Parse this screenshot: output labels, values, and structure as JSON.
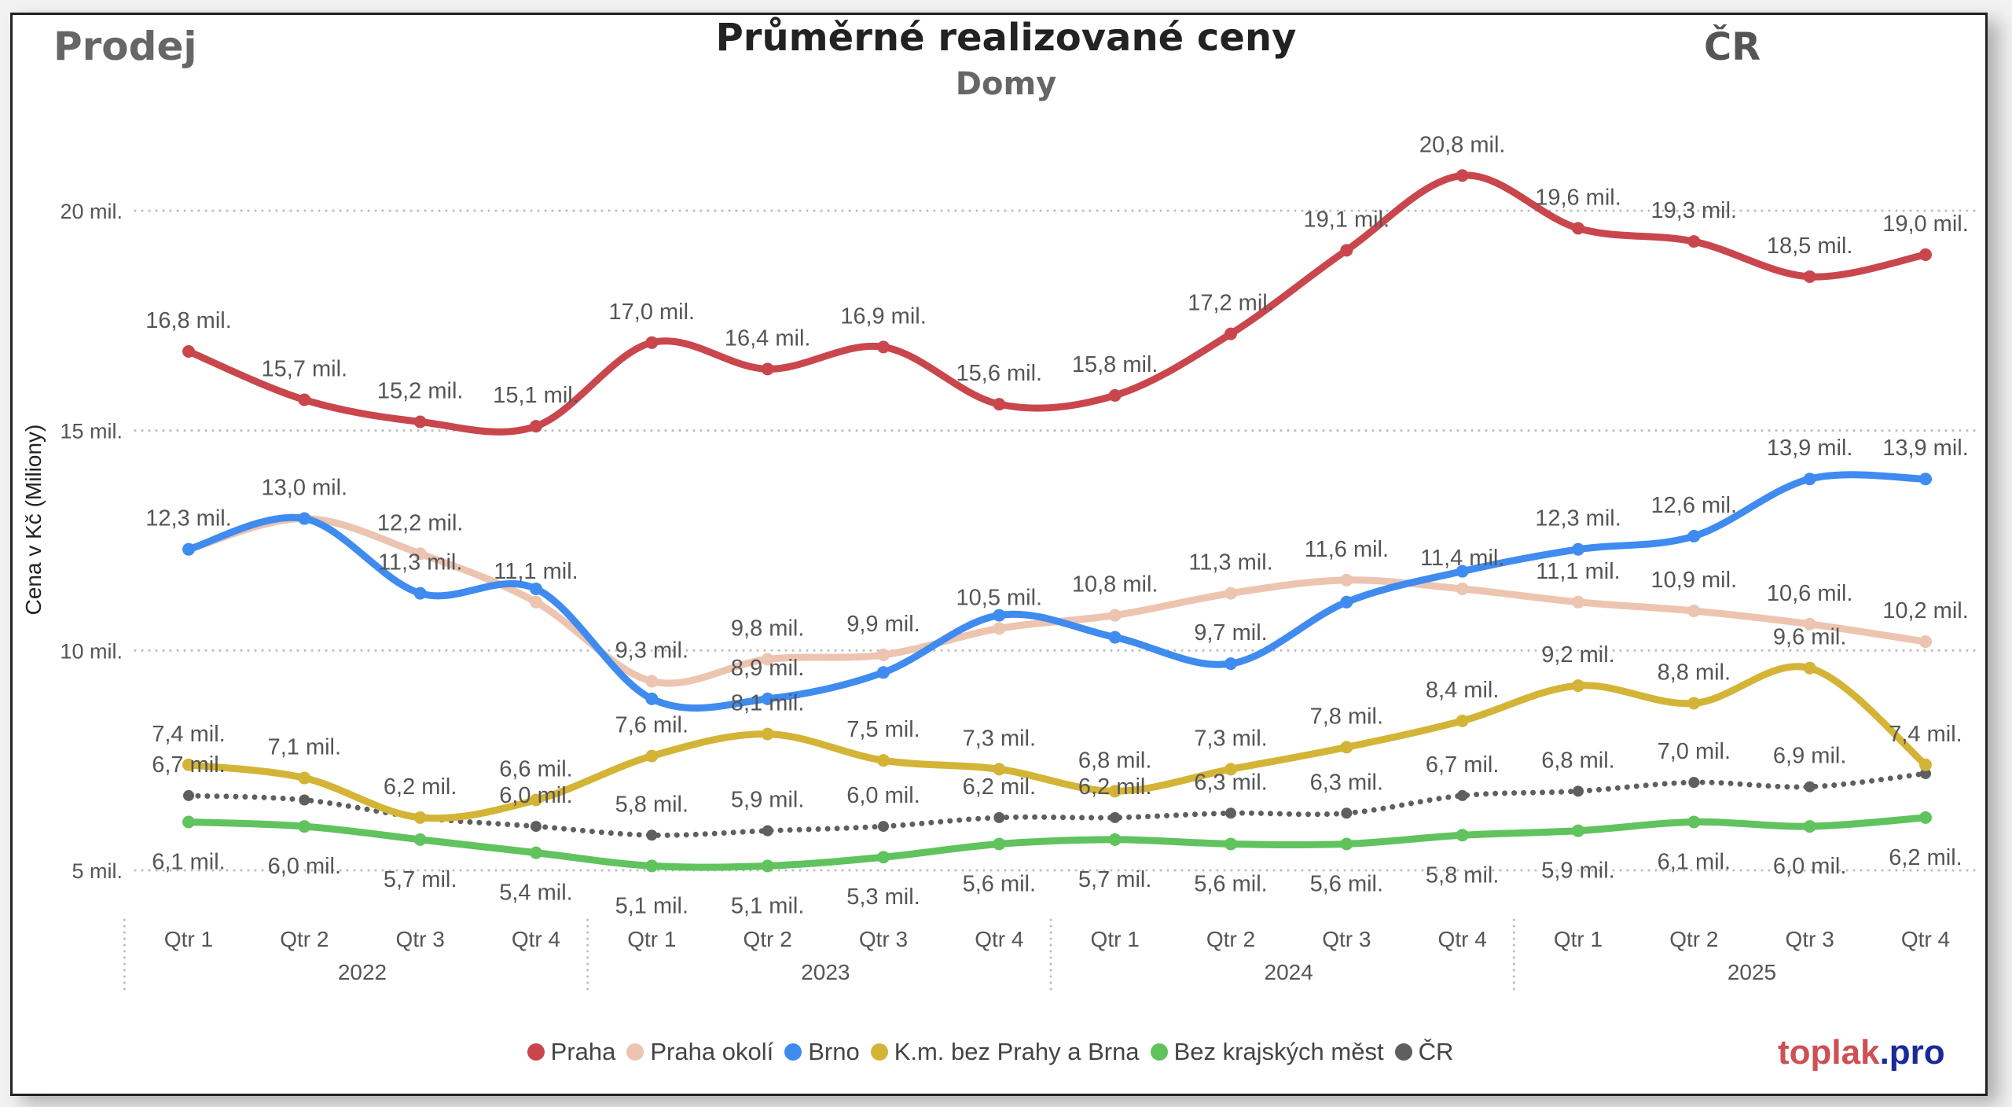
{
  "header": {
    "left": "Prodej",
    "title": "Průměrné realizované ceny",
    "subtitle": "Domy",
    "right": "ČR"
  },
  "logo": {
    "part1": "toplak",
    "part2": ".pro"
  },
  "chart_data": {
    "type": "line",
    "title": "Průměrné realizované ceny",
    "subtitle": "Domy",
    "ylabel": "Cena v Kč (Miliony)",
    "xlabel": "",
    "ylim": [
      5,
      20
    ],
    "grid": true,
    "legend_position": "bottom-center",
    "y_ticks": [
      {
        "value": 5,
        "label": "5 mil."
      },
      {
        "value": 10,
        "label": "10 mil."
      },
      {
        "value": 15,
        "label": "15 mil."
      },
      {
        "value": 20,
        "label": "20 mil."
      }
    ],
    "quarters": [
      "Qtr 1",
      "Qtr 2",
      "Qtr 3",
      "Qtr 4",
      "Qtr 1",
      "Qtr 2",
      "Qtr 3",
      "Qtr 4",
      "Qtr 1",
      "Qtr 2",
      "Qtr 3",
      "Qtr 4",
      "Qtr 1",
      "Qtr 2",
      "Qtr 3",
      "Qtr 4"
    ],
    "years": [
      "2022",
      "2023",
      "2024",
      "2025"
    ],
    "series": [
      {
        "name": "Praha",
        "color": "#c9474c",
        "dotted": false,
        "label_pos": "above",
        "values": [
          16.8,
          15.7,
          15.2,
          15.1,
          17.0,
          16.4,
          16.9,
          15.6,
          15.8,
          17.2,
          19.1,
          20.8,
          19.6,
          19.3,
          18.5,
          19.0
        ],
        "labels": [
          "16,8 mil.",
          "15,7 mil.",
          "15,2 mil.",
          "15,1 mil.",
          "17,0 mil.",
          "16,4 mil.",
          "16,9 mil.",
          "15,6 mil.",
          "15,8 mil.",
          "17,2 mil.",
          "19,1 mil.",
          "20,8 mil.",
          "19,6 mil.",
          "19,3 mil.",
          "18,5 mil.",
          "19,0 mil."
        ]
      },
      {
        "name": "Praha okolí",
        "color": "#ecc4b0",
        "dotted": false,
        "label_pos": "above",
        "values": [
          12.3,
          13.0,
          12.2,
          11.1,
          9.3,
          9.8,
          9.9,
          10.5,
          10.8,
          11.3,
          11.6,
          11.4,
          11.1,
          10.9,
          10.6,
          10.2
        ],
        "labels": [
          "12,3 mil.",
          "13,0 mil.",
          "12,2 mil.",
          "11,1 mil.",
          "9,3 mil.",
          "9,8 mil.",
          "9,9 mil.",
          "10,5 mil.",
          "10,8 mil.",
          "11,3 mil.",
          "11,6 mil.",
          "11,4 mil.",
          "11,1 mil.",
          "10,9 mil.",
          "10,6 mil.",
          "10,2 mil."
        ]
      },
      {
        "name": "Brno",
        "color": "#3f8bf0",
        "dotted": false,
        "label_pos": "above",
        "values": [
          12.3,
          13.0,
          11.3,
          11.4,
          8.9,
          8.9,
          9.5,
          10.8,
          10.3,
          9.7,
          11.1,
          11.8,
          12.3,
          12.6,
          13.9,
          13.9
        ],
        "labels": [
          null,
          null,
          "11,3 mil.",
          null,
          null,
          "8,9 mil.",
          null,
          null,
          null,
          "9,7 mil.",
          null,
          null,
          "12,3 mil.",
          "12,6 mil.",
          "13,9 mil.",
          "13,9 mil."
        ]
      },
      {
        "name": "K.m. bez Prahy a Brna",
        "color": "#d4b436",
        "dotted": false,
        "label_pos": "above",
        "values": [
          7.4,
          7.1,
          6.2,
          6.6,
          7.6,
          8.1,
          7.5,
          7.3,
          6.8,
          7.3,
          7.8,
          8.4,
          9.2,
          8.8,
          9.6,
          7.4
        ],
        "labels": [
          "7,4 mil.",
          "7,1 mil.",
          "6,2 mil.",
          "6,6 mil.",
          "7,6 mil.",
          "8,1 mil.",
          "7,5 mil.",
          "7,3 mil.",
          "6,8 mil.",
          "7,3 mil.",
          "7,8 mil.",
          "8,4 mil.",
          "9,2 mil.",
          "8,8 mil.",
          "9,6 mil.",
          "7,4 mil."
        ]
      },
      {
        "name": "Bez krajských měst",
        "color": "#60c35e",
        "dotted": false,
        "label_pos": "below",
        "values": [
          6.1,
          6.0,
          5.7,
          5.4,
          5.1,
          5.1,
          5.3,
          5.6,
          5.7,
          5.6,
          5.6,
          5.8,
          5.9,
          6.1,
          6.0,
          6.2
        ],
        "labels": [
          "6,1 mil.",
          "6,0 mil.",
          "5,7 mil.",
          "5,4 mil.",
          "5,1 mil.",
          "5,1 mil.",
          "5,3 mil.",
          "5,6 mil.",
          "5,7 mil.",
          "5,6 mil.",
          "5,6 mil.",
          "5,8 mil.",
          "5,9 mil.",
          "6,1 mil.",
          "6,0 mil.",
          "6,2 mil."
        ]
      },
      {
        "name": "ČR",
        "color": "#5f5f5f",
        "dotted": true,
        "label_pos": "above",
        "values": [
          6.7,
          6.6,
          6.2,
          6.0,
          5.8,
          5.9,
          6.0,
          6.2,
          6.2,
          6.3,
          6.3,
          6.7,
          6.8,
          7.0,
          6.9,
          7.2
        ],
        "labels": [
          "6,7 mil.",
          null,
          null,
          "6,0 mil.",
          "5,8 mil.",
          "5,9 mil.",
          "6,0 mil.",
          "6,2 mil.",
          "6,2 mil.",
          "6,3 mil.",
          "6,3 mil.",
          "6,7 mil.",
          "6,8 mil.",
          "7,0 mil.",
          "6,9 mil.",
          null
        ]
      }
    ]
  }
}
